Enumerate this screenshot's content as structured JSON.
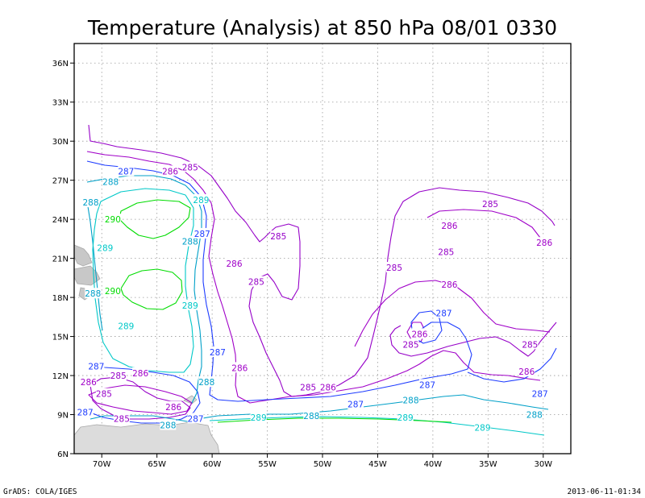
{
  "chart_data": {
    "type": "contour",
    "title": "Temperature (Analysis) at 850 hPa 08/01 0330",
    "xlabel": "",
    "ylabel": "",
    "x_ticks": [
      "70W",
      "65W",
      "60W",
      "55W",
      "50W",
      "45W",
      "40W",
      "35W",
      "30W"
    ],
    "y_ticks": [
      "6N",
      "9N",
      "12N",
      "15N",
      "18N",
      "21N",
      "24N",
      "27N",
      "30N",
      "33N",
      "36N"
    ],
    "xlim": [
      -72.5,
      -27.5
    ],
    "ylim": [
      6,
      37.5
    ],
    "grid": true,
    "contour_levels": [
      {
        "level": 285,
        "color": "#9600c8"
      },
      {
        "level": 286,
        "color": "#a000c8"
      },
      {
        "level": 287,
        "color": "#1e3cff"
      },
      {
        "level": 288,
        "color": "#00a0c8"
      },
      {
        "level": 289,
        "color": "#00c8c8"
      },
      {
        "level": 290,
        "color": "#00dc00"
      }
    ],
    "contour_labels": [
      {
        "text": "285",
        "lon": -62.0,
        "lat": 28.0,
        "color": "#9600c8"
      },
      {
        "text": "286",
        "lon": -63.8,
        "lat": 27.7,
        "color": "#a000c8"
      },
      {
        "text": "287",
        "lon": -67.8,
        "lat": 27.7,
        "color": "#1e3cff"
      },
      {
        "text": "288",
        "lon": -69.2,
        "lat": 26.9,
        "color": "#00a0c8"
      },
      {
        "text": "288",
        "lon": -71.0,
        "lat": 25.3,
        "color": "#00a0c8"
      },
      {
        "text": "289",
        "lon": -61.0,
        "lat": 25.5,
        "color": "#00c8c8"
      },
      {
        "text": "290",
        "lon": -69.0,
        "lat": 24.0,
        "color": "#00dc00"
      },
      {
        "text": "288",
        "lon": -62.0,
        "lat": 22.3,
        "color": "#00a0c8"
      },
      {
        "text": "287",
        "lon": -60.9,
        "lat": 22.9,
        "color": "#1e3cff"
      },
      {
        "text": "289",
        "lon": -69.7,
        "lat": 21.8,
        "color": "#00c8c8"
      },
      {
        "text": "285",
        "lon": -54.0,
        "lat": 22.7,
        "color": "#9600c8"
      },
      {
        "text": "286",
        "lon": -58.0,
        "lat": 20.6,
        "color": "#a000c8"
      },
      {
        "text": "285",
        "lon": -56.0,
        "lat": 19.2,
        "color": "#9600c8"
      },
      {
        "text": "290",
        "lon": -69.0,
        "lat": 18.5,
        "color": "#00dc00"
      },
      {
        "text": "288",
        "lon": -70.8,
        "lat": 18.3,
        "color": "#00a0c8"
      },
      {
        "text": "289",
        "lon": -62.0,
        "lat": 17.4,
        "color": "#00c8c8"
      },
      {
        "text": "289",
        "lon": -67.8,
        "lat": 15.8,
        "color": "#00c8c8"
      },
      {
        "text": "287",
        "lon": -59.5,
        "lat": 13.8,
        "color": "#1e3cff"
      },
      {
        "text": "286",
        "lon": -57.5,
        "lat": 12.6,
        "color": "#a000c8"
      },
      {
        "text": "288",
        "lon": -60.5,
        "lat": 11.5,
        "color": "#00a0c8"
      },
      {
        "text": "285",
        "lon": -51.3,
        "lat": 11.1,
        "color": "#9600c8"
      },
      {
        "text": "286",
        "lon": -49.5,
        "lat": 11.1,
        "color": "#a000c8"
      },
      {
        "text": "287",
        "lon": -70.5,
        "lat": 12.7,
        "color": "#1e3cff"
      },
      {
        "text": "286",
        "lon": -66.5,
        "lat": 12.2,
        "color": "#a000c8"
      },
      {
        "text": "285",
        "lon": -68.5,
        "lat": 12.0,
        "color": "#9600c8"
      },
      {
        "text": "286",
        "lon": -71.2,
        "lat": 11.5,
        "color": "#a000c8"
      },
      {
        "text": "285",
        "lon": -69.8,
        "lat": 10.6,
        "color": "#9600c8"
      },
      {
        "text": "287",
        "lon": -71.5,
        "lat": 9.2,
        "color": "#1e3cff"
      },
      {
        "text": "285",
        "lon": -68.2,
        "lat": 8.7,
        "color": "#9600c8"
      },
      {
        "text": "286",
        "lon": -63.5,
        "lat": 9.6,
        "color": "#a000c8"
      },
      {
        "text": "288",
        "lon": -64.0,
        "lat": 8.2,
        "color": "#00a0c8"
      },
      {
        "text": "287",
        "lon": -61.5,
        "lat": 8.7,
        "color": "#1e3cff"
      },
      {
        "text": "289",
        "lon": -55.8,
        "lat": 8.8,
        "color": "#00c8c8"
      },
      {
        "text": "288",
        "lon": -51.0,
        "lat": 8.9,
        "color": "#00a0c8"
      },
      {
        "text": "287",
        "lon": -47.0,
        "lat": 9.8,
        "color": "#1e3cff"
      },
      {
        "text": "289",
        "lon": -42.5,
        "lat": 8.8,
        "color": "#00c8c8"
      },
      {
        "text": "288",
        "lon": -42.0,
        "lat": 10.1,
        "color": "#00a0c8"
      },
      {
        "text": "287",
        "lon": -40.5,
        "lat": 11.3,
        "color": "#1e3cff"
      },
      {
        "text": "285",
        "lon": -42.0,
        "lat": 14.4,
        "color": "#9600c8"
      },
      {
        "text": "286",
        "lon": -41.2,
        "lat": 15.2,
        "color": "#a000c8"
      },
      {
        "text": "287",
        "lon": -39.0,
        "lat": 16.8,
        "color": "#1e3cff"
      },
      {
        "text": "286",
        "lon": -38.5,
        "lat": 19.0,
        "color": "#a000c8"
      },
      {
        "text": "285",
        "lon": -43.5,
        "lat": 20.3,
        "color": "#9600c8"
      },
      {
        "text": "285",
        "lon": -38.8,
        "lat": 21.5,
        "color": "#9600c8"
      },
      {
        "text": "286",
        "lon": -38.5,
        "lat": 23.5,
        "color": "#a000c8"
      },
      {
        "text": "285",
        "lon": -34.8,
        "lat": 25.2,
        "color": "#9600c8"
      },
      {
        "text": "286",
        "lon": -29.9,
        "lat": 22.2,
        "color": "#a000c8"
      },
      {
        "text": "285",
        "lon": -31.2,
        "lat": 14.4,
        "color": "#9600c8"
      },
      {
        "text": "286",
        "lon": -31.5,
        "lat": 12.3,
        "color": "#a000c8"
      },
      {
        "text": "287",
        "lon": -30.3,
        "lat": 10.6,
        "color": "#1e3cff"
      },
      {
        "text": "288",
        "lon": -30.8,
        "lat": 9.0,
        "color": "#00a0c8"
      },
      {
        "text": "289",
        "lon": -35.5,
        "lat": 8.0,
        "color": "#00c8c8"
      }
    ]
  },
  "footer": {
    "left": "GrADS: COLA/IGES",
    "right": "2013-06-11-01:34"
  }
}
